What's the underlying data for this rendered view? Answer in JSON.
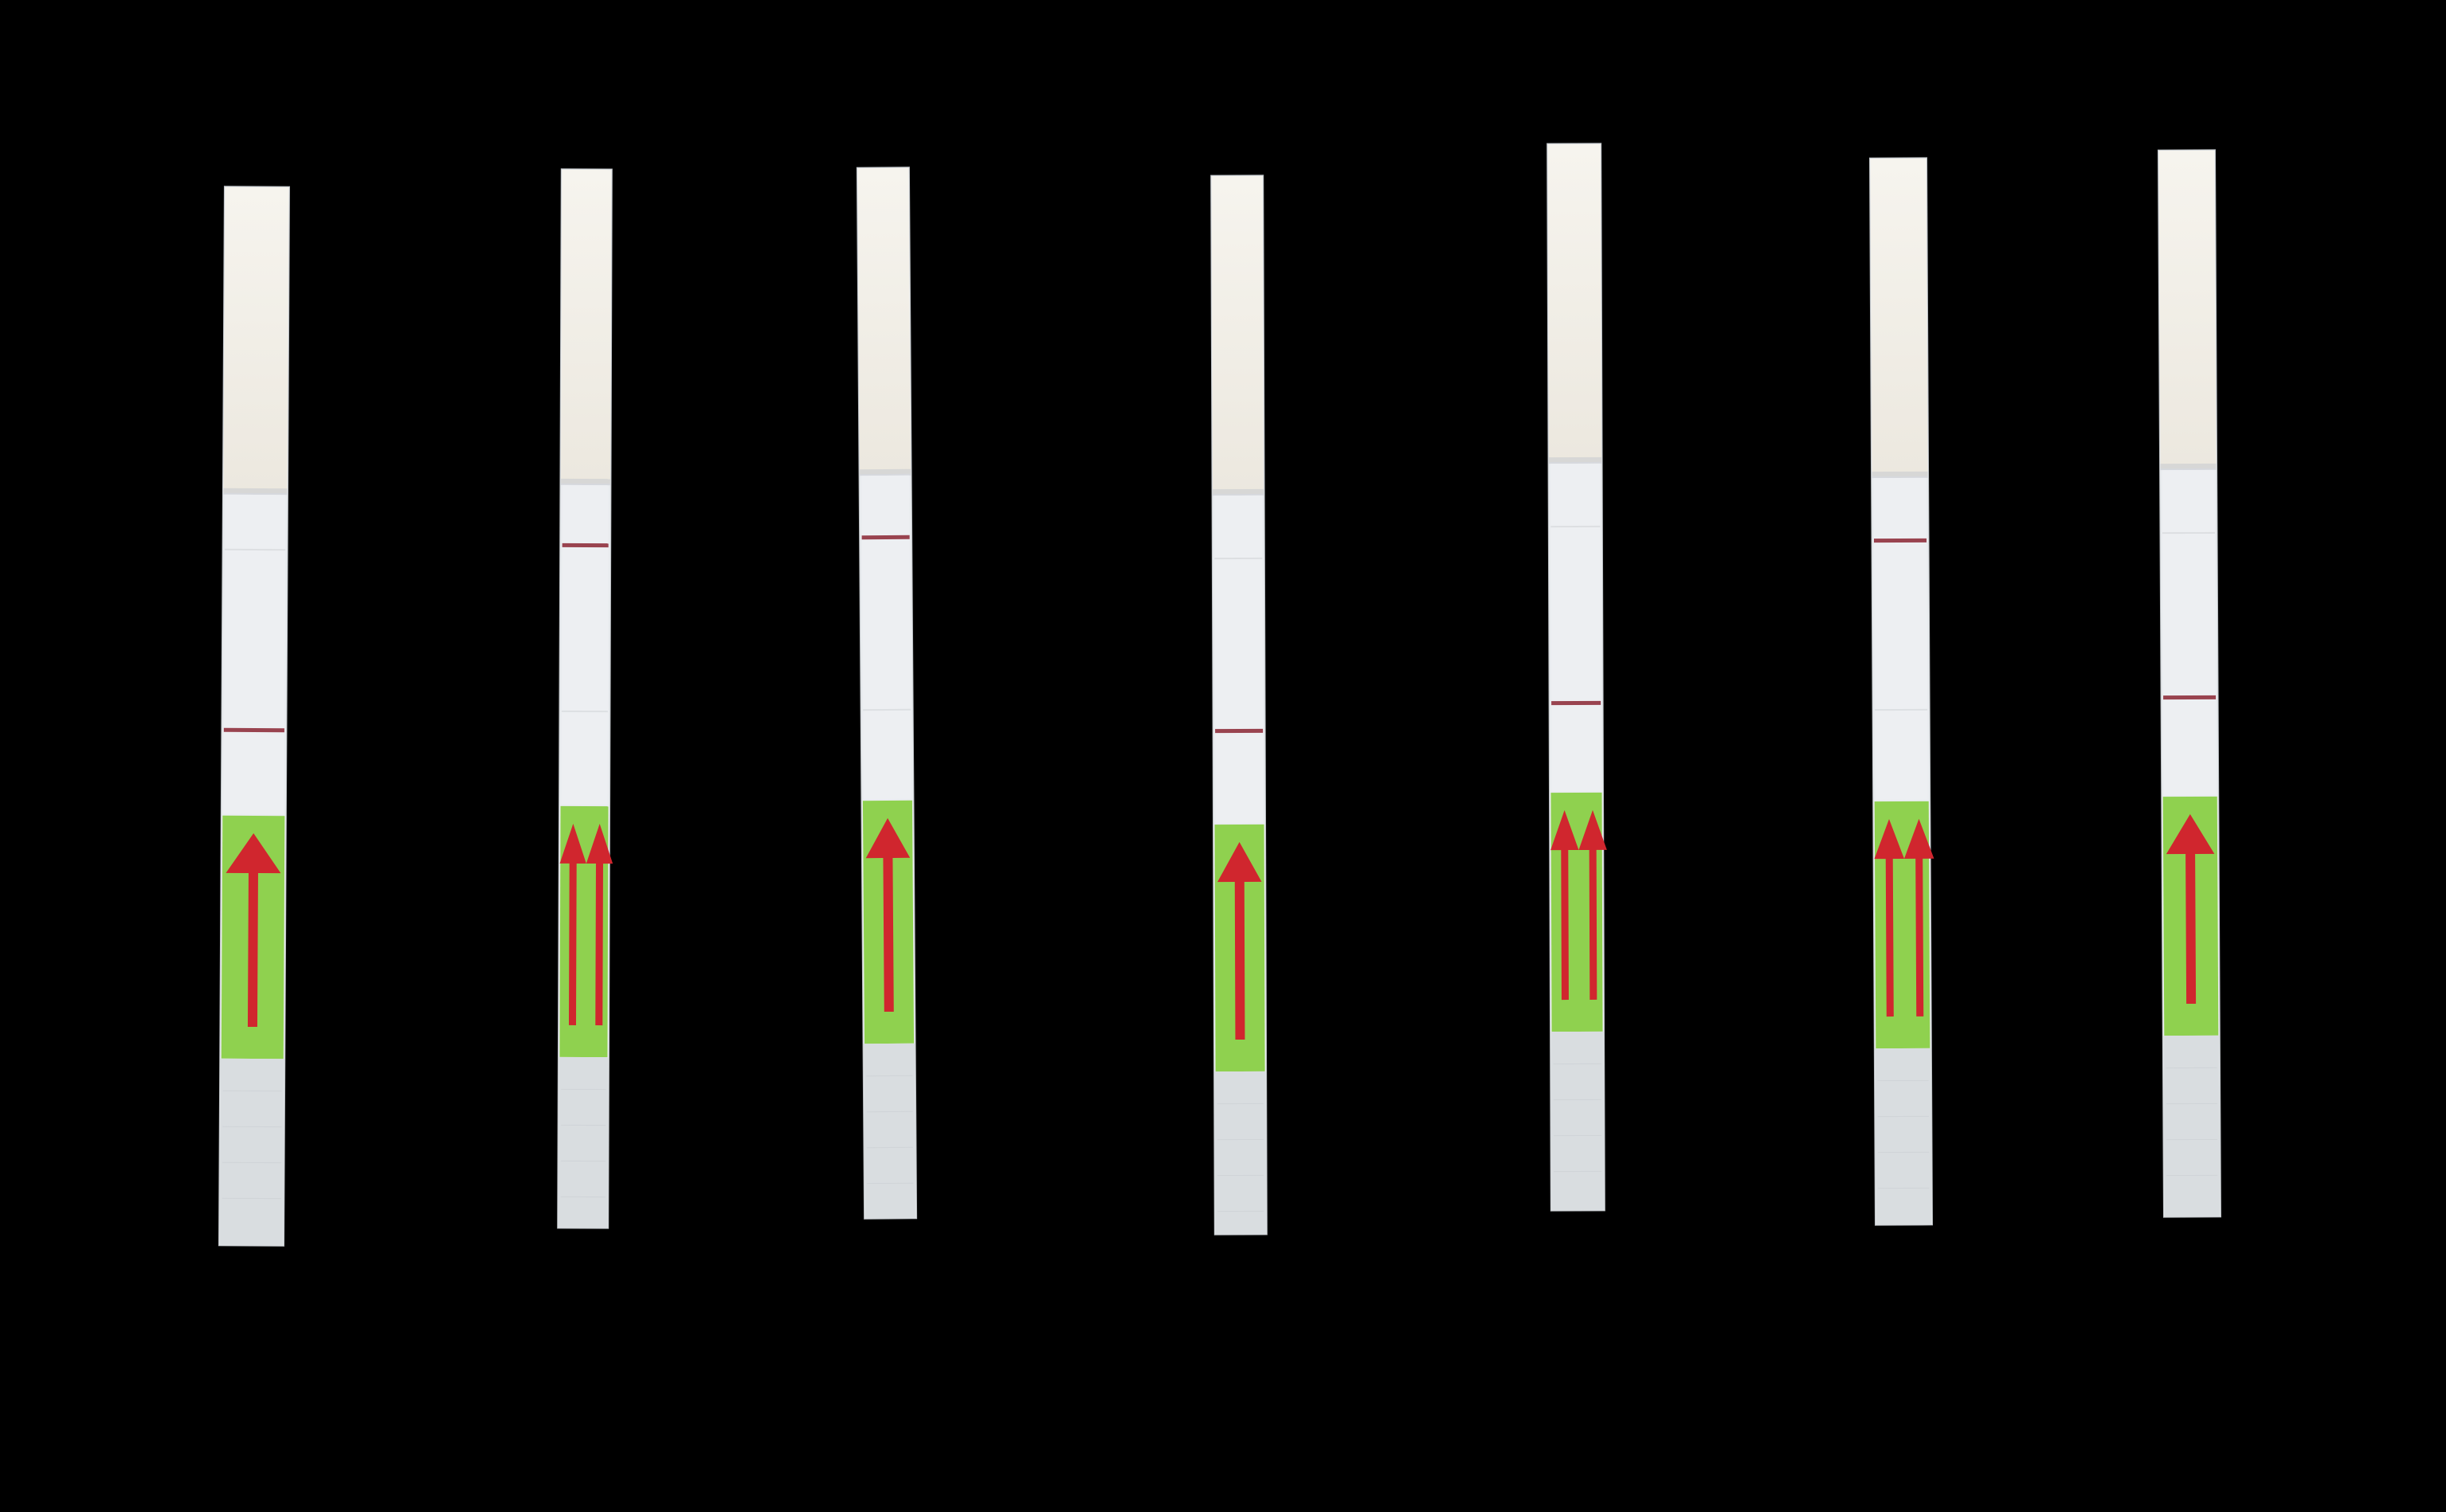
{
  "scene": {
    "description_name": "lateral-flow-test-strips",
    "background_color": "#000000",
    "strip_count": 7
  },
  "colors": {
    "paper_top": "#f3f0ea",
    "paper_window": "#edeff2",
    "sample_pad": "#d9dde0",
    "green_label": "#8fd14f",
    "arrow_red": "#d0262e",
    "line_red": "#8a2432"
  },
  "strips": [
    {
      "id": 1,
      "control_line": false,
      "test_line": true,
      "arrows": 1
    },
    {
      "id": 2,
      "control_line": true,
      "test_line": false,
      "arrows": 2
    },
    {
      "id": 3,
      "control_line": true,
      "test_line": false,
      "arrows": 1
    },
    {
      "id": 4,
      "control_line": false,
      "test_line": true,
      "arrows": 1
    },
    {
      "id": 5,
      "control_line": false,
      "test_line": true,
      "arrows": 2
    },
    {
      "id": 6,
      "control_line": true,
      "test_line": false,
      "arrows": 2
    },
    {
      "id": 7,
      "control_line": false,
      "test_line": true,
      "arrows": 1
    }
  ]
}
